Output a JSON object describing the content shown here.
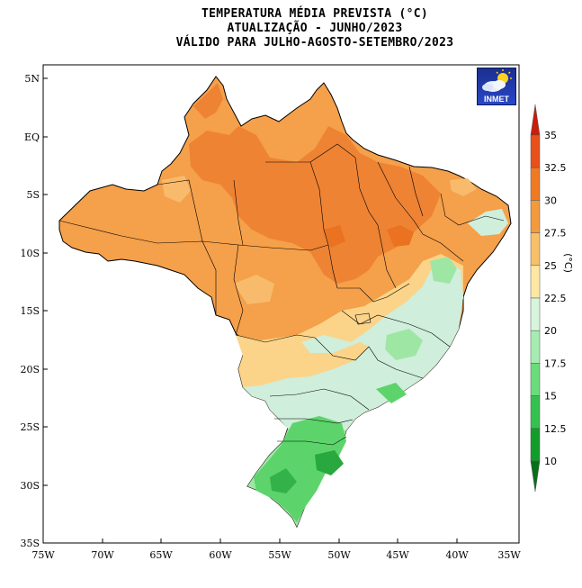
{
  "title": {
    "line1": "TEMPERATURA MÉDIA PREVISTA (°C)",
    "line2": "ATUALIZAÇÃO - JUNHO/2023",
    "line3": "VÁLIDO PARA JULHO-AGOSTO-SETEMBRO/2023"
  },
  "logo": {
    "text": "INMET",
    "icon": "cloud-sun-icon"
  },
  "axes": {
    "lat_labels": [
      "5N",
      "EQ",
      "5S",
      "10S",
      "15S",
      "20S",
      "25S",
      "30S",
      "35S"
    ],
    "lon_labels": [
      "75W",
      "70W",
      "65W",
      "60W",
      "55W",
      "50W",
      "45W",
      "40W",
      "35W"
    ]
  },
  "colorbar": {
    "unit": "(°C)",
    "levels": [
      "35",
      "32.5",
      "30",
      "27.5",
      "25",
      "22.5",
      "20",
      "17.5",
      "15",
      "12.5",
      "10"
    ],
    "colors": [
      "#c81e0a",
      "#e8501a",
      "#f07a24",
      "#f39a3c",
      "#f7bf68",
      "#fde7a3",
      "#d7f5dc",
      "#a6ecb2",
      "#6bdc7c",
      "#33c24f",
      "#129d2a",
      "#07701a"
    ]
  },
  "colors": {
    "orange_main": "#f5a04a",
    "orange_dark": "#ee8334",
    "orange_light": "#f8bb6c",
    "cream": "#fbd489",
    "mint": "#cfeedb",
    "green_light": "#9ee6a4",
    "green_mid": "#5cd46b",
    "green_dark": "#28a83e"
  }
}
